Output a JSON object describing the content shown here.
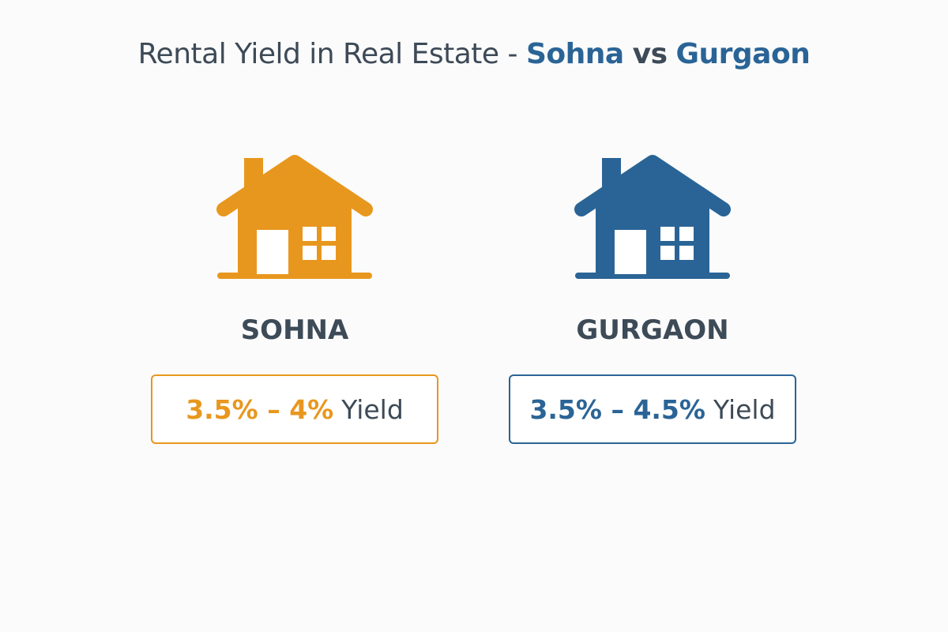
{
  "header": {
    "title": {
      "lead": "Rental Yield in Real Estate -",
      "first": "Sohna",
      "joiner": "vs",
      "second": "Gurgaon"
    }
  },
  "cards": [
    {
      "name": "SOHNA",
      "range": "3.5% – 4%",
      "unit": "Yield",
      "color": "#e8971e"
    },
    {
      "name": "GURGAON",
      "range": "3.5% – 4.5%",
      "unit": "Yield",
      "color": "#2a6496"
    }
  ]
}
